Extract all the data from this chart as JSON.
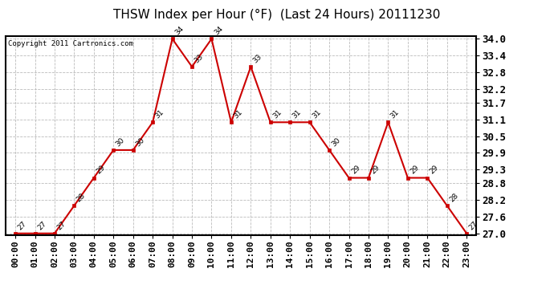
{
  "title": "THSW Index per Hour (°F)  (Last 24 Hours) 20111230",
  "copyright": "Copyright 2011 Cartronics.com",
  "hours": [
    "00:00",
    "01:00",
    "02:00",
    "03:00",
    "04:00",
    "05:00",
    "06:00",
    "07:00",
    "08:00",
    "09:00",
    "10:00",
    "11:00",
    "12:00",
    "13:00",
    "14:00",
    "15:00",
    "16:00",
    "17:00",
    "18:00",
    "19:00",
    "20:00",
    "21:00",
    "22:00",
    "23:00"
  ],
  "values": [
    27,
    27,
    27,
    28,
    29,
    30,
    30,
    31,
    34,
    33,
    34,
    31,
    33,
    31,
    31,
    31,
    30,
    29,
    29,
    31,
    29,
    29,
    28,
    27
  ],
  "line_color": "#cc0000",
  "marker_color": "#cc0000",
  "bg_color": "#ffffff",
  "grid_color": "#bbbbbb",
  "ylim_min": 27.0,
  "ylim_max": 34.0,
  "yticks": [
    27.0,
    27.6,
    28.2,
    28.8,
    29.3,
    29.9,
    30.5,
    31.1,
    31.7,
    32.2,
    32.8,
    33.4,
    34.0
  ],
  "title_fontsize": 11,
  "copyright_fontsize": 6.5,
  "label_fontsize": 6.5,
  "tick_fontsize": 8,
  "ytick_fontsize": 9
}
